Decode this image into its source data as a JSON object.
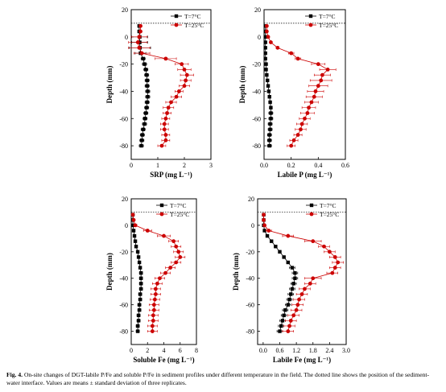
{
  "caption": {
    "label": "Fig. 4.",
    "text": "On-site changes of DGT-labile P/Fe and soluble P/Fe in sediment profiles under different temperature in the field. The dotted line shows the position of the sediment-water interface. Values are means ± standard deviation of three replicates."
  },
  "chart_data": [
    {
      "type": "line",
      "xlabel": "SRP (mg L⁻¹)",
      "ylabel": "Depth (mm)",
      "xlim": [
        0,
        3
      ],
      "xticks": [
        "0",
        "1",
        "2",
        "3"
      ],
      "ylim": [
        -90,
        20
      ],
      "yticks": [
        "20",
        "0",
        "-20",
        "-40",
        "-60",
        "-80"
      ],
      "interface_depth": 10,
      "legend": "top-right",
      "series": [
        {
          "name": "T=7°C",
          "color": "#000000",
          "marker": "square",
          "depth": [
            8,
            4,
            0,
            -4,
            -8,
            -12,
            -16,
            -20,
            -24,
            -28,
            -32,
            -36,
            -40,
            -44,
            -48,
            -52,
            -56,
            -60,
            -64,
            -68,
            -72,
            -76,
            -80
          ],
          "values": [
            0.3,
            0.3,
            0.32,
            0.32,
            0.33,
            0.35,
            0.45,
            0.5,
            0.55,
            0.58,
            0.6,
            0.6,
            0.62,
            0.62,
            0.6,
            0.58,
            0.55,
            0.52,
            0.5,
            0.45,
            0.42,
            0.4,
            0.38
          ],
          "errors": [
            0.05,
            0.05,
            0.3,
            0.3,
            0.4,
            0.2,
            0.08,
            0.08,
            0.08,
            0.08,
            0.08,
            0.08,
            0.08,
            0.08,
            0.08,
            0.08,
            0.08,
            0.08,
            0.08,
            0.08,
            0.08,
            0.08,
            0.08
          ]
        },
        {
          "name": "T=25°C",
          "color": "#cc0000",
          "marker": "circle",
          "depth": [
            8,
            4,
            0,
            -4,
            -8,
            -12,
            -16,
            -20,
            -24,
            -28,
            -32,
            -36,
            -40,
            -44,
            -48,
            -52,
            -56,
            -60,
            -64,
            -68,
            -72,
            -76,
            -80
          ],
          "values": [
            0.35,
            0.35,
            0.3,
            0.25,
            0.3,
            0.4,
            1.3,
            1.9,
            2.0,
            2.1,
            2.05,
            2.0,
            1.8,
            1.7,
            1.5,
            1.4,
            1.35,
            1.3,
            1.25,
            1.25,
            1.3,
            1.3,
            1.15
          ],
          "errors": [
            0.05,
            0.05,
            0.3,
            0.35,
            0.4,
            0.3,
            0.4,
            0.25,
            0.25,
            0.25,
            0.2,
            0.2,
            0.15,
            0.2,
            0.2,
            0.2,
            0.15,
            0.15,
            0.15,
            0.15,
            0.15,
            0.15,
            0.15
          ]
        }
      ]
    },
    {
      "type": "line",
      "xlabel": "Labile P (mg L⁻¹)",
      "ylabel": "Depth (mm)",
      "xlim": [
        0,
        0.6
      ],
      "xticks": [
        "0.0",
        "0.2",
        "0.4",
        "0.6"
      ],
      "ylim": [
        -90,
        20
      ],
      "yticks": [
        "20",
        "0",
        "-20",
        "-40",
        "-60",
        "-80"
      ],
      "interface_depth": 10,
      "legend": "top-right",
      "series": [
        {
          "name": "T=7°C",
          "color": "#000000",
          "marker": "square",
          "depth": [
            8,
            4,
            0,
            -4,
            -8,
            -12,
            -16,
            -20,
            -24,
            -28,
            -32,
            -36,
            -40,
            -44,
            -48,
            -52,
            -56,
            -60,
            -64,
            -68,
            -72,
            -76,
            -80
          ],
          "values": [
            0.01,
            0.01,
            0.01,
            0.01,
            0.01,
            0.01,
            0.01,
            0.015,
            0.015,
            0.02,
            0.025,
            0.03,
            0.035,
            0.04,
            0.045,
            0.05,
            0.05,
            0.05,
            0.045,
            0.045,
            0.04,
            0.04,
            0.04
          ],
          "errors": [
            0.005,
            0.005,
            0.005,
            0.005,
            0.005,
            0.005,
            0.005,
            0.005,
            0.005,
            0.01,
            0.01,
            0.01,
            0.01,
            0.01,
            0.01,
            0.01,
            0.015,
            0.015,
            0.015,
            0.015,
            0.015,
            0.015,
            0.015
          ]
        },
        {
          "name": "T=25°C",
          "color": "#cc0000",
          "marker": "circle",
          "depth": [
            8,
            4,
            0,
            -4,
            -8,
            -12,
            -16,
            -20,
            -24,
            -28,
            -32,
            -36,
            -40,
            -44,
            -48,
            -52,
            -56,
            -60,
            -64,
            -68,
            -72,
            -76,
            -80
          ],
          "values": [
            0.02,
            0.02,
            0.03,
            0.05,
            0.1,
            0.2,
            0.25,
            0.4,
            0.47,
            0.43,
            0.42,
            0.4,
            0.38,
            0.37,
            0.35,
            0.33,
            0.32,
            0.3,
            0.28,
            0.27,
            0.25,
            0.22,
            0.2
          ],
          "errors": [
            0.005,
            0.005,
            0.005,
            0.01,
            0.01,
            0.02,
            0.02,
            0.05,
            0.06,
            0.06,
            0.08,
            0.07,
            0.06,
            0.06,
            0.05,
            0.05,
            0.05,
            0.04,
            0.04,
            0.04,
            0.03,
            0.03,
            0.03
          ]
        }
      ]
    },
    {
      "type": "line",
      "xlabel": "Soluble Fe (mg L⁻¹)",
      "ylabel": "Depth (mm)",
      "xlim": [
        0,
        8
      ],
      "xticks": [
        "0",
        "2",
        "4",
        "6",
        "8"
      ],
      "ylim": [
        -90,
        20
      ],
      "yticks": [
        "20",
        "0",
        "-20",
        "-40",
        "-60",
        "-80"
      ],
      "interface_depth": 10,
      "legend": "top-right",
      "series": [
        {
          "name": "T=7°C",
          "color": "#000000",
          "marker": "square",
          "depth": [
            8,
            4,
            0,
            -4,
            -8,
            -12,
            -16,
            -20,
            -24,
            -28,
            -32,
            -36,
            -40,
            -44,
            -48,
            -52,
            -56,
            -60,
            -64,
            -68,
            -72,
            -76,
            -80
          ],
          "values": [
            0.2,
            0.2,
            0.2,
            0.3,
            0.4,
            0.5,
            0.6,
            0.8,
            0.9,
            1.0,
            1.1,
            1.2,
            1.2,
            1.2,
            1.2,
            1.1,
            1.1,
            1.0,
            1.0,
            0.9,
            0.9,
            0.8,
            0.8
          ],
          "errors": [
            0.05,
            0.05,
            0.1,
            0.1,
            0.1,
            0.1,
            0.1,
            0.15,
            0.15,
            0.15,
            0.15,
            0.2,
            0.2,
            0.2,
            0.2,
            0.2,
            0.2,
            0.2,
            0.2,
            0.2,
            0.2,
            0.2,
            0.2
          ]
        },
        {
          "name": "T=25°C",
          "color": "#cc0000",
          "marker": "circle",
          "depth": [
            8,
            4,
            0,
            -4,
            -8,
            -12,
            -16,
            -20,
            -24,
            -28,
            -32,
            -36,
            -40,
            -44,
            -48,
            -52,
            -56,
            -60,
            -64,
            -68,
            -72,
            -76,
            -80
          ],
          "values": [
            0.2,
            0.3,
            0.5,
            2.0,
            4.0,
            5.2,
            5.5,
            5.8,
            6.0,
            5.5,
            4.8,
            4.2,
            3.5,
            3.2,
            3.0,
            3.0,
            2.9,
            2.8,
            2.8,
            2.7,
            2.7,
            2.6,
            2.6
          ],
          "errors": [
            0.1,
            0.1,
            0.2,
            0.5,
            0.8,
            0.6,
            0.6,
            0.6,
            0.6,
            0.6,
            0.6,
            0.6,
            0.6,
            0.6,
            0.6,
            0.6,
            0.6,
            0.6,
            0.6,
            0.6,
            0.6,
            0.6,
            0.6
          ]
        }
      ]
    },
    {
      "type": "line",
      "xlabel": "Labile Fe (mg L⁻¹)",
      "ylabel": "Depth (mm)",
      "xlim": [
        -0.2,
        3.0
      ],
      "xticks": [
        "0.0",
        "0.6",
        "1.2",
        "1.8",
        "2.4",
        "3.0"
      ],
      "xtick_values": [
        0,
        0.6,
        1.2,
        1.8,
        2.4,
        3.0
      ],
      "ylim": [
        -90,
        20
      ],
      "yticks": [
        "20",
        "0",
        "-20",
        "-40",
        "-60",
        "-80"
      ],
      "interface_depth": 10,
      "legend": "top-right",
      "series": [
        {
          "name": "T=7°C",
          "color": "#000000",
          "marker": "square",
          "depth": [
            8,
            4,
            0,
            -4,
            -8,
            -12,
            -16,
            -20,
            -24,
            -28,
            -32,
            -36,
            -40,
            -44,
            -48,
            -52,
            -56,
            -60,
            -64,
            -68,
            -72,
            -76,
            -80
          ],
          "values": [
            0.02,
            0.02,
            0.02,
            0.05,
            0.15,
            0.3,
            0.45,
            0.6,
            0.75,
            0.9,
            1.05,
            1.15,
            1.15,
            1.1,
            1.05,
            1.0,
            0.95,
            0.9,
            0.8,
            0.75,
            0.7,
            0.65,
            0.6
          ],
          "errors": [
            0.02,
            0.02,
            0.02,
            0.03,
            0.05,
            0.05,
            0.05,
            0.05,
            0.05,
            0.05,
            0.1,
            0.1,
            0.1,
            0.1,
            0.1,
            0.1,
            0.1,
            0.1,
            0.1,
            0.1,
            0.1,
            0.1,
            0.1
          ]
        },
        {
          "name": "T=25°C",
          "color": "#cc0000",
          "marker": "circle",
          "depth": [
            8,
            4,
            0,
            -4,
            -8,
            -12,
            -16,
            -20,
            -24,
            -28,
            -32,
            -36,
            -40,
            -44,
            -48,
            -52,
            -56,
            -60,
            -64,
            -68,
            -72,
            -76,
            -80
          ],
          "values": [
            0.02,
            0.02,
            0.05,
            0.2,
            0.9,
            1.8,
            2.2,
            2.4,
            2.6,
            2.7,
            2.6,
            2.5,
            1.8,
            1.7,
            1.5,
            1.4,
            1.3,
            1.25,
            1.2,
            1.1,
            1.0,
            0.95,
            0.9
          ],
          "errors": [
            0.02,
            0.02,
            0.03,
            0.1,
            0.2,
            0.3,
            0.2,
            0.2,
            0.2,
            0.2,
            0.2,
            0.2,
            0.3,
            0.2,
            0.2,
            0.2,
            0.2,
            0.2,
            0.2,
            0.2,
            0.2,
            0.2,
            0.2
          ]
        }
      ]
    }
  ]
}
